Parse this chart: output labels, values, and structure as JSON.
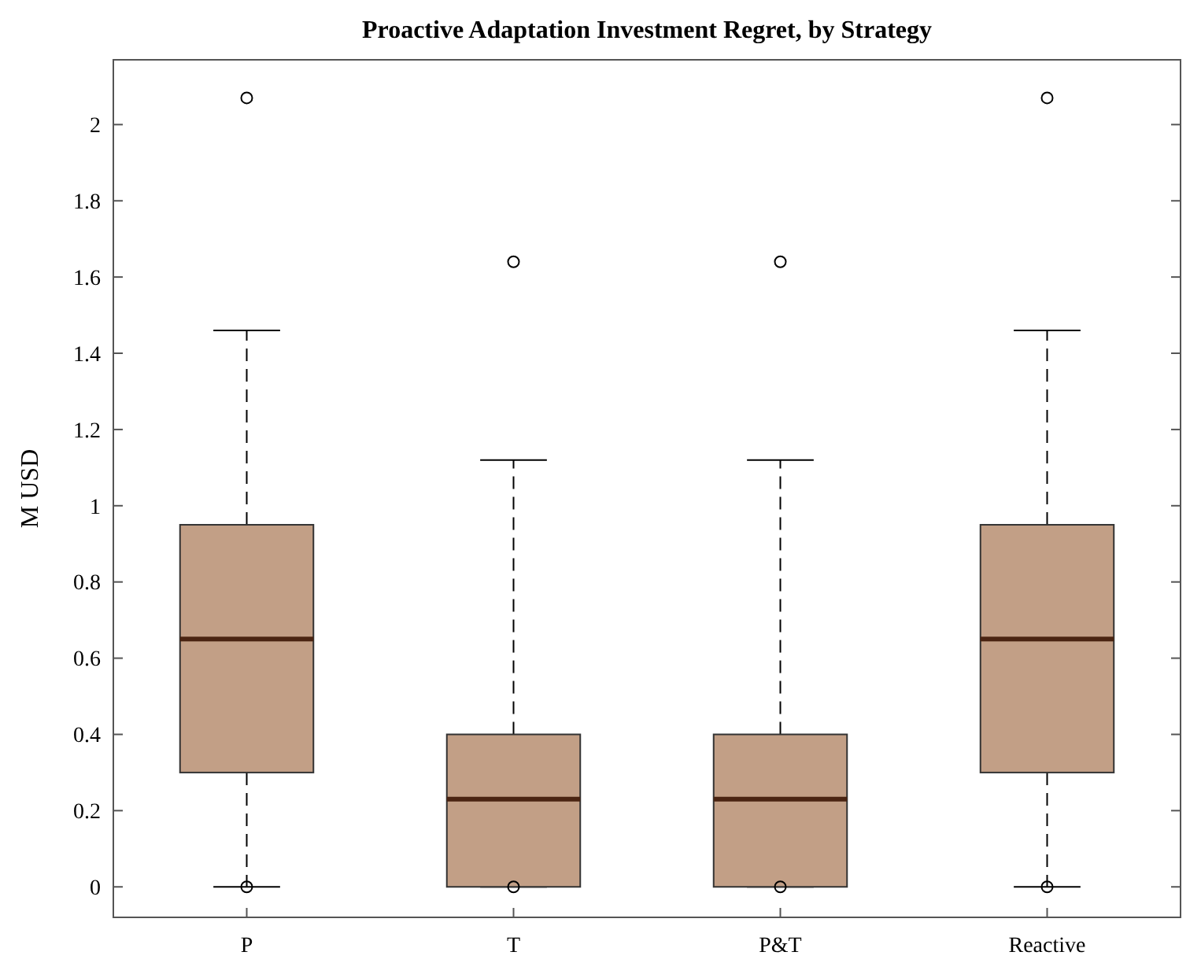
{
  "chart_data": {
    "type": "box",
    "title": "Proactive Adaptation Investment Regret, by Strategy",
    "ylabel": "M USD",
    "categories": [
      "P",
      "T",
      "P&T",
      "Reactive"
    ],
    "color": "#c29f86",
    "ylim": [
      -0.08,
      2.17
    ],
    "yticks": [
      0,
      0.2,
      0.4,
      0.6,
      0.8,
      1,
      1.2,
      1.4,
      1.6,
      1.8,
      2
    ],
    "grid": false,
    "boxes": [
      {
        "low": 0,
        "q1": 0.3,
        "median": 0.65,
        "q3": 0.95,
        "high": 1.46,
        "outliers": [
          2.07,
          0
        ]
      },
      {
        "low": 0,
        "q1": 0,
        "median": 0.23,
        "q3": 0.4,
        "high": 1.12,
        "outliers": [
          1.64,
          0
        ]
      },
      {
        "low": 0,
        "q1": 0,
        "median": 0.23,
        "q3": 0.4,
        "high": 1.12,
        "outliers": [
          1.64,
          0
        ]
      },
      {
        "low": 0,
        "q1": 0.3,
        "median": 0.65,
        "q3": 0.95,
        "high": 1.46,
        "outliers": [
          2.07,
          0
        ]
      }
    ]
  }
}
